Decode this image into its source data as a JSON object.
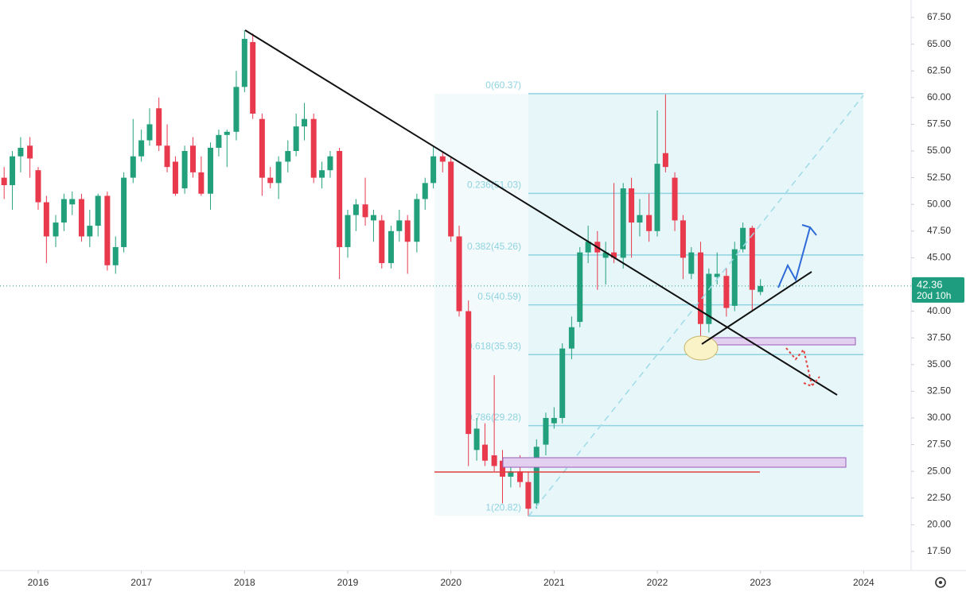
{
  "chart_data": {
    "type": "candlestick",
    "x": [
      2015.67,
      2015.75,
      2015.83,
      2015.92,
      2016.0,
      2016.08,
      2016.17,
      2016.25,
      2016.33,
      2016.42,
      2016.5,
      2016.58,
      2016.67,
      2016.75,
      2016.83,
      2016.92,
      2017.0,
      2017.08,
      2017.17,
      2017.25,
      2017.33,
      2017.42,
      2017.5,
      2017.58,
      2017.67,
      2017.75,
      2017.83,
      2017.92,
      2018.0,
      2018.08,
      2018.17,
      2018.25,
      2018.33,
      2018.42,
      2018.5,
      2018.58,
      2018.67,
      2018.75,
      2018.83,
      2018.92,
      2019.0,
      2019.08,
      2019.17,
      2019.25,
      2019.33,
      2019.42,
      2019.5,
      2019.58,
      2019.67,
      2019.75,
      2019.83,
      2019.92,
      2020.0,
      2020.08,
      2020.17,
      2020.25,
      2020.33,
      2020.42,
      2020.5,
      2020.58,
      2020.67,
      2020.75,
      2020.83,
      2020.92,
      2021.0,
      2021.08,
      2021.17,
      2021.25,
      2021.33,
      2021.42,
      2021.5,
      2021.58,
      2021.67,
      2021.75,
      2021.83,
      2021.92,
      2022.0,
      2022.08,
      2022.17,
      2022.25,
      2022.33,
      2022.42,
      2022.5,
      2022.58,
      2022.67,
      2022.75,
      2022.83,
      2022.92,
      2023.0
    ],
    "open": [
      52.5,
      51.8,
      54.5,
      55.5,
      53.2,
      50.2,
      47.0,
      48.3,
      50.0,
      50.5,
      47.0,
      48.0,
      50.8,
      44.3,
      46.0,
      52.5,
      54.5,
      56.0,
      59.0,
      55.5,
      54.0,
      51.5,
      55.5,
      53.0,
      51.0,
      55.3,
      56.5,
      56.8,
      61.0,
      65.2,
      58.0,
      52.5,
      52.0,
      54.0,
      55.0,
      57.3,
      58.0,
      52.5,
      53.2,
      55.0,
      46.0,
      49.0,
      50.0,
      48.5,
      48.5,
      44.5,
      47.5,
      48.5,
      46.5,
      50.5,
      52.0,
      54.5,
      54.0,
      47.0,
      40.0,
      27.0,
      27.5,
      26.5,
      26.0,
      24.5,
      25.0,
      24.0,
      22.0,
      27.5,
      29.5,
      30.0,
      36.5,
      39.0,
      45.5,
      46.5,
      45.0,
      45.5,
      45.0,
      51.5,
      48.3,
      49.0,
      47.5,
      54.8,
      52.5,
      48.5,
      43.5,
      45.5,
      38.8,
      43.2,
      43.3,
      40.5,
      45.8,
      47.8,
      41.8
    ],
    "high": [
      53.5,
      55,
      56.3,
      56.3,
      53.5,
      50.8,
      49.0,
      51.0,
      51.2,
      51.0,
      49.5,
      51.0,
      51.2,
      47.0,
      53.0,
      58.0,
      57.0,
      59.0,
      60.0,
      57.5,
      54.5,
      55.5,
      56.3,
      54.5,
      55.8,
      57.0,
      57.0,
      62.5,
      66.3,
      66.0,
      58.5,
      53.5,
      54.5,
      56.0,
      58.5,
      59.5,
      58.5,
      54.0,
      55.0,
      55.3,
      49.5,
      50.5,
      52.5,
      49.5,
      49.0,
      48.0,
      49.5,
      49.0,
      51.0,
      52.5,
      55.5,
      55.0,
      54.5,
      48.0,
      41.0,
      30.0,
      29.5,
      34.0,
      27.0,
      26.0,
      26.5,
      25.0,
      28.0,
      30.5,
      31.0,
      37.0,
      39.5,
      46.0,
      48.0,
      47.5,
      46.5,
      52.0,
      52.0,
      52.5,
      50.5,
      51.0,
      58.8,
      60.3,
      53.0,
      49.0,
      46.0,
      46.5,
      44.0,
      45.5,
      44.0,
      46.5,
      48.3,
      48.0,
      43.0
    ],
    "low": [
      50.5,
      49.5,
      53,
      52.5,
      49.5,
      44.5,
      46.0,
      47.5,
      49.0,
      46.5,
      46.0,
      47.0,
      43.8,
      43.5,
      45.5,
      52.0,
      54.0,
      55.5,
      55.0,
      53.0,
      50.8,
      51.0,
      52.5,
      50.8,
      49.5,
      54.5,
      53.5,
      56.0,
      60.5,
      58.0,
      50.8,
      51.5,
      50.5,
      53.0,
      54.5,
      56.0,
      52.0,
      51.5,
      52.5,
      43.0,
      45.0,
      47.5,
      48.0,
      46.5,
      44.0,
      44.0,
      46.5,
      43.5,
      45.5,
      49.5,
      51.5,
      53.0,
      46.5,
      39.5,
      25.5,
      26.0,
      25.5,
      25.0,
      22.0,
      23.5,
      23.5,
      20.8,
      21.5,
      26.5,
      29.0,
      29.5,
      35.5,
      38.5,
      44.5,
      42.0,
      42.5,
      44.5,
      44.0,
      45.0,
      47.0,
      46.5,
      47.0,
      53.0,
      47.5,
      43.0,
      43.0,
      37.0,
      38.0,
      42.5,
      39.5,
      40.0,
      45.5,
      40.0,
      41.5
    ],
    "close": [
      51.8,
      54.5,
      55.3,
      54.3,
      50.2,
      47.0,
      48.3,
      50.5,
      50.5,
      47.0,
      48.0,
      50.8,
      44.3,
      46.0,
      52.5,
      54.5,
      56.0,
      57.5,
      55.5,
      53.5,
      51.0,
      55.0,
      53.0,
      51.0,
      55.3,
      56.5,
      56.8,
      61.0,
      65.5,
      58.5,
      52.5,
      52.0,
      54.0,
      55.0,
      57.3,
      58.0,
      52.5,
      53.2,
      54.5,
      46.0,
      49.0,
      50.0,
      48.8,
      49.0,
      44.5,
      47.5,
      48.5,
      46.5,
      50.5,
      52.0,
      54.5,
      54.0,
      47.0,
      40.0,
      28.5,
      29.0,
      26.0,
      25.5,
      24.5,
      25.0,
      24.0,
      21.5,
      27.3,
      30.0,
      30.0,
      36.5,
      38.5,
      45.5,
      46.5,
      45.5,
      45.5,
      45.0,
      51.5,
      48.3,
      49.0,
      47.5,
      53.8,
      53.5,
      48.5,
      45.0,
      45.5,
      38.8,
      43.5,
      43.5,
      40.3,
      45.8,
      47.8,
      42.0,
      42.36
    ],
    "up_color": "#22a07c",
    "down_color": "#e8394d",
    "xlim": [
      2015.63,
      2024.46
    ],
    "xticks": [
      2016,
      2017,
      2018,
      2019,
      2020,
      2021,
      2022,
      2023,
      2024
    ],
    "ylim": [
      15.71,
      69.14
    ],
    "yticks": [
      {
        "value": 17.5,
        "label": "17.50"
      },
      {
        "value": 20,
        "label": "20.00"
      },
      {
        "value": 22.5,
        "label": "22.50"
      },
      {
        "value": 25,
        "label": "25.00"
      },
      {
        "value": 27.5,
        "label": "27.50"
      },
      {
        "value": 30,
        "label": "30.00"
      },
      {
        "value": 32.5,
        "label": "32.50"
      },
      {
        "value": 35,
        "label": "35.00"
      },
      {
        "value": 37.5,
        "label": "37.50"
      },
      {
        "value": 40,
        "label": "40.00"
      },
      {
        "value": 42.5,
        "label": "42.50"
      },
      {
        "value": 45,
        "label": "45.00"
      },
      {
        "value": 47.5,
        "label": "47.50"
      },
      {
        "value": 50,
        "label": "50.00"
      },
      {
        "value": 52.5,
        "label": "52.50"
      },
      {
        "value": 55,
        "label": "55.00"
      },
      {
        "value": 57.5,
        "label": "57.50"
      },
      {
        "value": 60,
        "label": "60.00"
      },
      {
        "value": 62.5,
        "label": "62.50"
      },
      {
        "value": 65,
        "label": "65.00"
      },
      {
        "value": 67.5,
        "label": "67.50"
      }
    ],
    "grid": false,
    "fib_levels": [
      {
        "value": 60.37,
        "label": "0(60.37)"
      },
      {
        "value": 51.03,
        "label": "0.236(51.03)"
      },
      {
        "value": 45.26,
        "label": "0.382(45.26)"
      },
      {
        "value": 40.59,
        "label": "0.5(40.59)"
      },
      {
        "value": 35.93,
        "label": "0.618(35.93)"
      },
      {
        "value": 29.28,
        "label": "0.786(29.28)"
      },
      {
        "value": 20.82,
        "label": "1(20.82)"
      }
    ],
    "fib_color": "#8fd3e0",
    "last_price": 42.36,
    "countdown": "20d 10h",
    "last_color": "#1e9e7e"
  }
}
